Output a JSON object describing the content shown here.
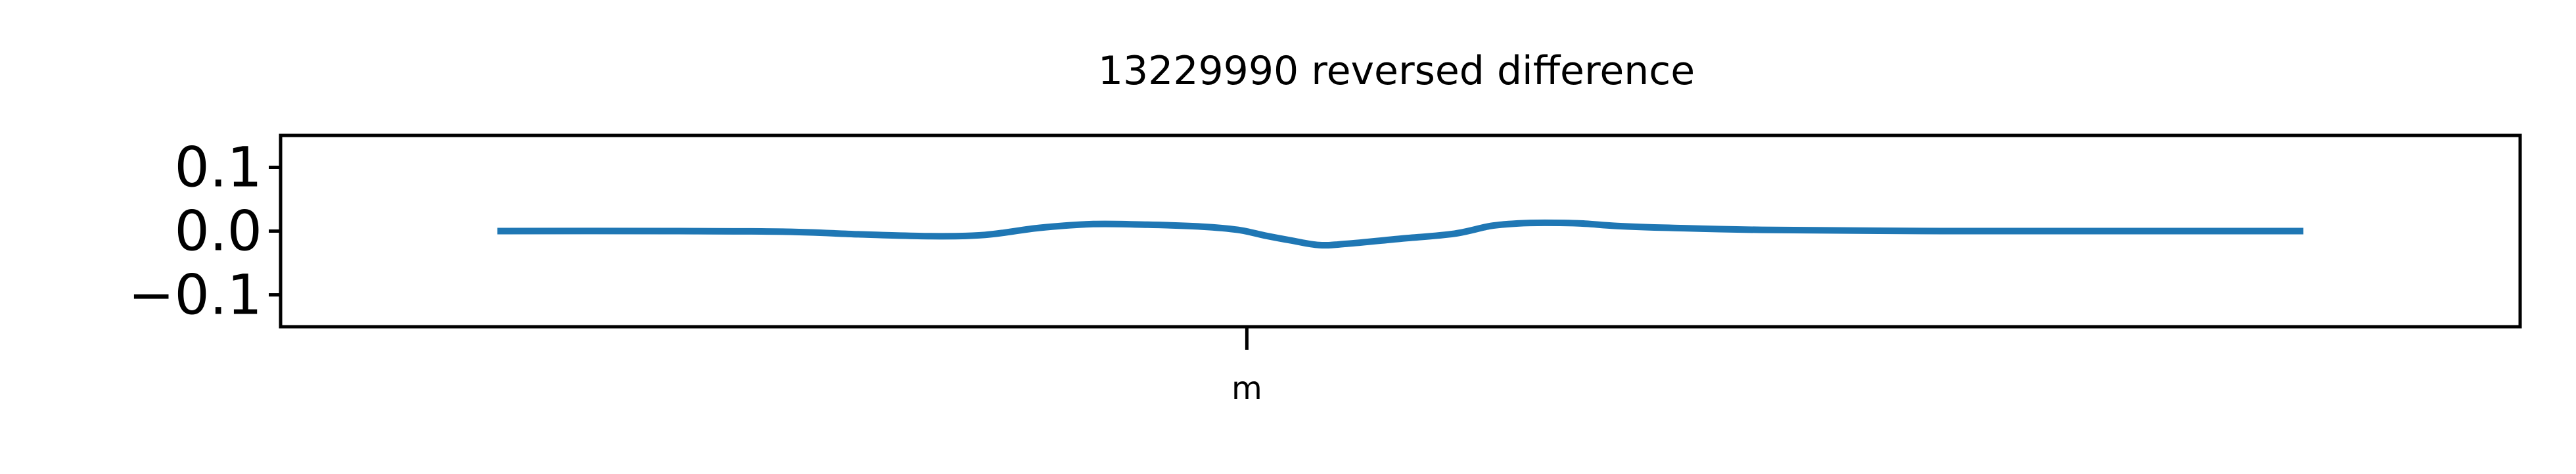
{
  "chart_data": {
    "type": "line",
    "title": "13229990 reversed difference",
    "xlabel": "",
    "ylabel": "",
    "ylim": [
      -0.15,
      0.15
    ],
    "xlim": [
      -0.12,
      1.12
    ],
    "grid": false,
    "legend": "none",
    "yticks": [
      {
        "value": 0.1,
        "label": "0.1"
      },
      {
        "value": 0.0,
        "label": "0.0"
      },
      {
        "value": -0.1,
        "label": "−0.1"
      }
    ],
    "xticks": [
      {
        "value": 0.415,
        "label": "m"
      }
    ],
    "colors": {
      "series": "#1f77b4",
      "axes": "#000000",
      "background": "#ffffff"
    },
    "series": [
      {
        "x": [
          0.0,
          0.1,
          0.16,
          0.2,
          0.24,
          0.27,
          0.3,
          0.33,
          0.36,
          0.39,
          0.41,
          0.425,
          0.44,
          0.455,
          0.47,
          0.5,
          0.53,
          0.55,
          0.565,
          0.58,
          0.6,
          0.62,
          0.65,
          0.7,
          0.8,
          0.9,
          1.0
        ],
        "y": [
          0.0,
          0.0,
          -0.001,
          -0.005,
          -0.008,
          -0.006,
          0.005,
          0.011,
          0.01,
          0.007,
          0.002,
          -0.007,
          -0.015,
          -0.022,
          -0.02,
          -0.012,
          -0.004,
          0.008,
          0.012,
          0.013,
          0.012,
          0.008,
          0.005,
          0.002,
          0.0,
          0.0,
          0.0
        ]
      }
    ]
  }
}
